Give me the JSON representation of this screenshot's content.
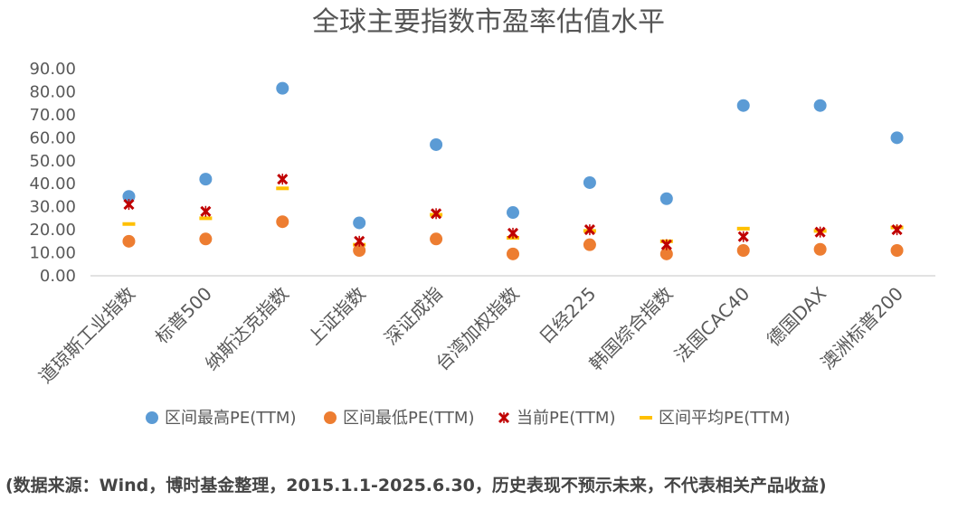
{
  "chart_data": {
    "type": "scatter",
    "title": "全球主要指数市盈率估值水平",
    "xlabel": "",
    "ylabel": "",
    "ylim": [
      0,
      90
    ],
    "yticks": [
      "0.00",
      "10.00",
      "20.00",
      "30.00",
      "40.00",
      "50.00",
      "60.00",
      "70.00",
      "80.00",
      "90.00"
    ],
    "grid": false,
    "legend_position": "bottom",
    "categories": [
      "道琼斯工业指数",
      "标普500",
      "纳斯达克指数",
      "上证指数",
      "深证成指",
      "台湾加权指数",
      "日经225",
      "韩国综合指数",
      "法国CAC40",
      "德国DAX",
      "澳洲标普200"
    ],
    "series": [
      {
        "name": "区间最高PE(TTM)",
        "marker": "circle",
        "color": "#5B9BD5",
        "values": [
          34.5,
          42,
          81.5,
          23,
          57,
          27.5,
          40.5,
          33.5,
          74,
          74,
          60
        ]
      },
      {
        "name": "区间最低PE(TTM)",
        "marker": "circle",
        "color": "#ED7D31",
        "values": [
          15,
          16,
          23.5,
          11,
          16,
          9.5,
          13.5,
          9.5,
          11,
          11.5,
          11
        ]
      },
      {
        "name": "当前PE(TTM)",
        "marker": "cross",
        "color": "#C00000",
        "values": [
          31,
          28,
          42,
          15,
          27,
          18.5,
          20,
          13.5,
          17,
          19,
          20
        ]
      },
      {
        "name": "区间平均PE(TTM)",
        "marker": "dash",
        "color": "#FFC000",
        "values": [
          22.5,
          25,
          38,
          13.5,
          26.5,
          16.5,
          19.5,
          15,
          20.5,
          19.5,
          21
        ]
      }
    ]
  },
  "source_note": "(数据来源：Wind，博时基金整理，2015.1.1-2025.6.30，历史表现不预示未来，不代表相关产品收益)"
}
